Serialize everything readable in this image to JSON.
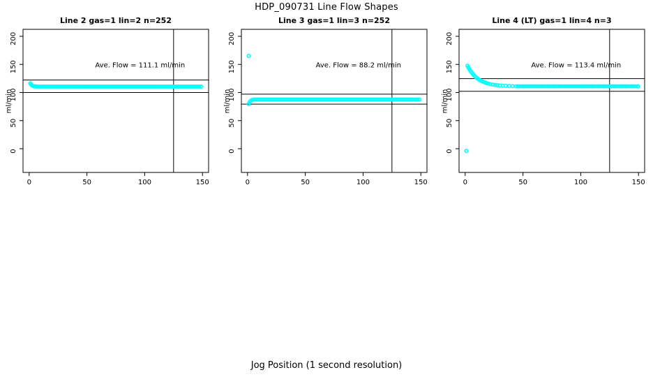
{
  "figure": {
    "title": "HDP_090731  Line Flow Shapes",
    "shared_xlabel": "Jog Position (1 second resolution)",
    "background_color": "#FFFFFF",
    "point_color": "#00FFFF",
    "line_color": "#000000"
  },
  "chart_data": [
    {
      "type": "scatter",
      "title": "Line 2 gas=1 lin=2 n=252",
      "ylabel": "ml/min",
      "x_ticks": [
        0,
        50,
        100,
        150
      ],
      "y_ticks": [
        0,
        50,
        100,
        150,
        200
      ],
      "xlim": [
        0,
        150
      ],
      "ylim": [
        0,
        200
      ],
      "ave_flow": 111.1,
      "ave_flow_label": "Ave. Flow =  111.1  ml/min",
      "annotation_xy": [
        96,
        149
      ],
      "h_ref_lines": [
        122.2,
        100.0
      ],
      "v_ref_line": 125,
      "head_points": [
        [
          1,
          116.5
        ],
        [
          1.7,
          114.3
        ],
        [
          2.4,
          112.8
        ],
        [
          3.2,
          111.8
        ],
        [
          4.1,
          111.2
        ],
        [
          5.2,
          110.9
        ]
      ],
      "band": {
        "x_from": 6.4,
        "x_to": 150,
        "x_step": 1.6,
        "y": 110.6
      },
      "outliers": []
    },
    {
      "type": "scatter",
      "title": "Line 3 gas=1 lin=3 n=252",
      "ylabel": "ml/min",
      "x_ticks": [
        0,
        50,
        100,
        150
      ],
      "y_ticks": [
        0,
        50,
        100,
        150,
        200
      ],
      "xlim": [
        0,
        150
      ],
      "ylim": [
        0,
        200
      ],
      "ave_flow": 88.2,
      "ave_flow_label": "Ave. Flow =  88.2  ml/min",
      "annotation_xy": [
        96,
        149
      ],
      "h_ref_lines": [
        97.0,
        79.4
      ],
      "v_ref_line": 125,
      "head_points": [
        [
          1,
          79.5
        ],
        [
          1.8,
          82.6
        ],
        [
          2.6,
          84.8
        ],
        [
          3.5,
          86.2
        ],
        [
          4.5,
          87.0
        ],
        [
          5.5,
          87.4
        ]
      ],
      "band": {
        "x_from": 6.4,
        "x_to": 150,
        "x_step": 1.6,
        "y": 87.6
      },
      "outliers": [
        [
          1,
          165
        ]
      ]
    },
    {
      "type": "scatter",
      "title": "Line 4 (LT) gas=1 lin=4 n=3",
      "ylabel": "ml/min",
      "x_ticks": [
        0,
        50,
        100,
        150
      ],
      "y_ticks": [
        0,
        50,
        100,
        150,
        200
      ],
      "xlim": [
        0,
        150
      ],
      "ylim": [
        0,
        200
      ],
      "ave_flow": 113.4,
      "ave_flow_label": "Ave. Flow =  113.4  ml/min",
      "annotation_xy": [
        96,
        149
      ],
      "h_ref_lines": [
        124.7,
        102.1
      ],
      "v_ref_line": 125,
      "head_points": [
        [
          2,
          147.5
        ],
        [
          2.8,
          144.5
        ],
        [
          3.6,
          141.6
        ],
        [
          4.4,
          139.0
        ],
        [
          5.2,
          136.6
        ],
        [
          6,
          134.4
        ],
        [
          7,
          131.9
        ],
        [
          8,
          129.7
        ],
        [
          9,
          127.7
        ],
        [
          10,
          125.9
        ],
        [
          11,
          124.3
        ],
        [
          12,
          122.9
        ],
        [
          13,
          121.6
        ],
        [
          14,
          120.5
        ],
        [
          15.5,
          119.0
        ],
        [
          17,
          117.8
        ],
        [
          18.5,
          116.7
        ],
        [
          20,
          115.8
        ],
        [
          22,
          114.8
        ],
        [
          24,
          114.0
        ],
        [
          26,
          113.4
        ],
        [
          28,
          112.9
        ],
        [
          30,
          112.5
        ],
        [
          32.5,
          112.1
        ],
        [
          35,
          111.8
        ],
        [
          38,
          111.5
        ],
        [
          41,
          111.3
        ]
      ],
      "band": {
        "x_from": 44,
        "x_to": 150,
        "x_step": 1.6,
        "y": 111.1
      },
      "outliers": [
        [
          1,
          -4
        ]
      ]
    }
  ]
}
